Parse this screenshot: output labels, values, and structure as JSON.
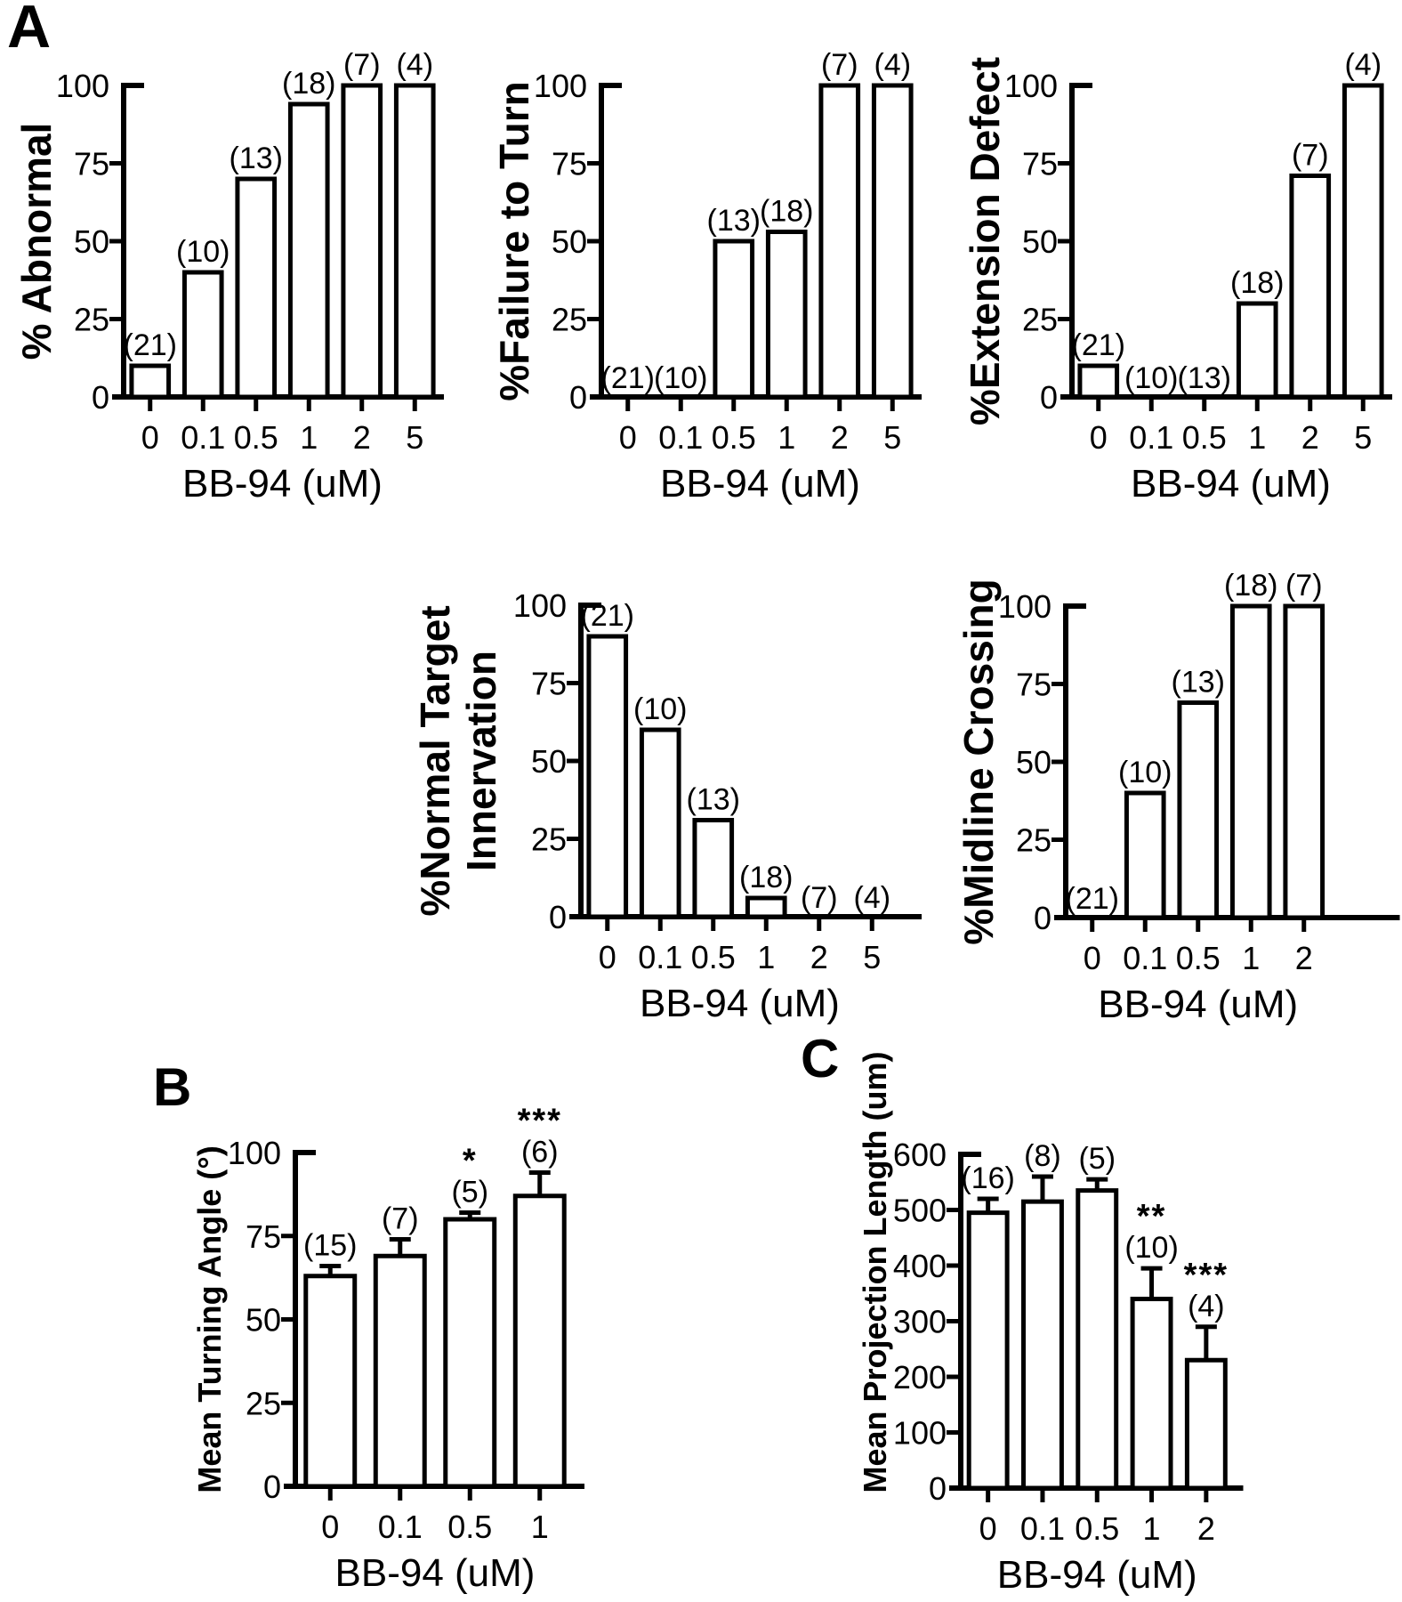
{
  "colors": {
    "ink": "#000000",
    "paper": "#ffffff",
    "bar_fill": "#ffffff"
  },
  "panels": {
    "A": "A",
    "B": "B",
    "C": "C"
  },
  "chart_data": [
    {
      "id": "abnormal",
      "panel": "A",
      "type": "bar",
      "title": "",
      "ylabel": [
        "% Abnormal"
      ],
      "xlabel": "BB-94 (uM)",
      "categories": [
        "0",
        "0.1",
        "0.5",
        "1",
        "2",
        "5"
      ],
      "values": [
        10,
        40,
        70,
        94,
        100,
        100
      ],
      "bar_counts": [
        "(21)",
        "(10)",
        "(13)",
        "(18)",
        "(7)",
        "(4)"
      ],
      "ylim": [
        0,
        100
      ],
      "yticks": [
        0,
        25,
        50,
        75,
        100
      ],
      "grid": "off",
      "legend": "none"
    },
    {
      "id": "failure_to_turn",
      "panel": "A",
      "type": "bar",
      "title": "",
      "ylabel": [
        "%Failure to Turn"
      ],
      "xlabel": "BB-94 (uM)",
      "categories": [
        "0",
        "0.1",
        "0.5",
        "1",
        "2",
        "5"
      ],
      "values": [
        0,
        0,
        50,
        53,
        100,
        100
      ],
      "bar_counts": [
        "(21)",
        "(10)",
        "(13)",
        "(18)",
        "(7)",
        "(4)"
      ],
      "ylim": [
        0,
        100
      ],
      "yticks": [
        0,
        25,
        50,
        75,
        100
      ],
      "grid": "off",
      "legend": "none"
    },
    {
      "id": "extension_defect",
      "panel": "A",
      "type": "bar",
      "title": "",
      "ylabel": [
        "%Extension Defect"
      ],
      "xlabel": "BB-94 (uM)",
      "categories": [
        "0",
        "0.1",
        "0.5",
        "1",
        "2",
        "5"
      ],
      "values": [
        10,
        0,
        0,
        30,
        71,
        100
      ],
      "bar_counts": [
        "(21)",
        "(10)",
        "(13)",
        "(18)",
        "(7)",
        "(4)"
      ],
      "ylim": [
        0,
        100
      ],
      "yticks": [
        0,
        25,
        50,
        75,
        100
      ],
      "grid": "off",
      "legend": "none"
    },
    {
      "id": "normal_target_innervation",
      "panel": "A",
      "type": "bar",
      "title": "",
      "ylabel": [
        "%Normal Target",
        "Innervation"
      ],
      "xlabel": "BB-94 (uM)",
      "categories": [
        "0",
        "0.1",
        "0.5",
        "1",
        "2",
        "5"
      ],
      "values": [
        90,
        60,
        31,
        6,
        0,
        0
      ],
      "bar_counts": [
        "(21)",
        "(10)",
        "(13)",
        "(18)",
        "(7)",
        "(4)"
      ],
      "ylim": [
        0,
        100
      ],
      "yticks": [
        0,
        25,
        50,
        75,
        100
      ],
      "grid": "off",
      "legend": "none"
    },
    {
      "id": "midline_crossing",
      "panel": "A",
      "type": "bar",
      "title": "",
      "ylabel": [
        "%Midline Crossing"
      ],
      "xlabel": "BB-94 (uM)",
      "categories": [
        "0",
        "0.1",
        "0.5",
        "1",
        "2"
      ],
      "values": [
        0,
        40,
        69,
        100,
        100
      ],
      "bar_counts": [
        "(21)",
        "(10)",
        "(13)",
        "(18)",
        "(7)"
      ],
      "ylim": [
        0,
        100
      ],
      "yticks": [
        0,
        25,
        50,
        75,
        100
      ],
      "grid": "off",
      "legend": "none"
    },
    {
      "id": "turning_angle",
      "panel": "B",
      "type": "bar",
      "title": "",
      "ylabel": [
        "Mean Turning Angle (°)"
      ],
      "xlabel": "BB-94 (uM)",
      "categories": [
        "0",
        "0.1",
        "0.5",
        "1"
      ],
      "values": [
        63,
        69,
        80,
        87
      ],
      "errors": [
        3,
        5,
        2,
        7
      ],
      "significance": [
        "",
        "",
        "*",
        "***"
      ],
      "bar_counts": [
        "(15)",
        "(7)",
        "(5)",
        "(6)"
      ],
      "ylim": [
        0,
        100
      ],
      "yticks": [
        0,
        25,
        50,
        75,
        100
      ],
      "grid": "off",
      "legend": "none"
    },
    {
      "id": "projection_length",
      "panel": "C",
      "type": "bar",
      "title": "",
      "ylabel": [
        "Mean Projection Length (um)"
      ],
      "xlabel": "BB-94 (uM)",
      "categories": [
        "0",
        "0.1",
        "0.5",
        "1",
        "2"
      ],
      "values": [
        495,
        515,
        535,
        340,
        230
      ],
      "errors": [
        25,
        45,
        20,
        55,
        60
      ],
      "significance": [
        "",
        "",
        "",
        "**",
        "***"
      ],
      "bar_counts": [
        "(16)",
        "(8)",
        "(5)",
        "(10)",
        "(4)"
      ],
      "ylim": [
        0,
        600
      ],
      "yticks": [
        0,
        100,
        200,
        300,
        400,
        500,
        600
      ],
      "grid": "off",
      "legend": "none"
    }
  ]
}
